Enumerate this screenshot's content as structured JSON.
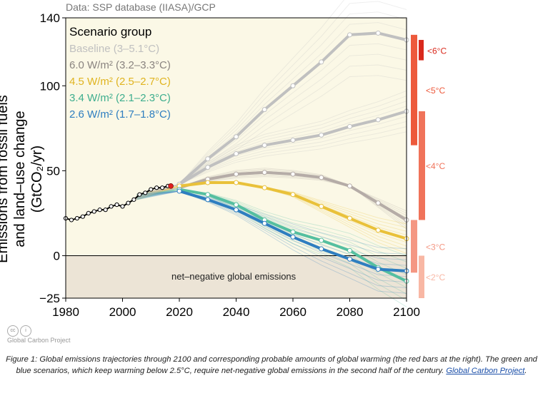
{
  "source_note": "Data: SSP database (IIASA)/GCP",
  "credit": "Global Carbon Project",
  "caption": {
    "text": "Figure 1: Global emissions trajectories through 2100 and corresponding probable amounts of global warming (the red bars at the right).  The green and blue scenarios, which keep warming below 2.5°C, require net-negative global emissions in the second half of the century.",
    "link": "Global Carbon Project"
  },
  "chart_data": {
    "type": "line",
    "ylabel": "Emissions from fossil fuels and land–use change (GtCO₂/yr)",
    "xlim": [
      1980,
      2100
    ],
    "ylim": [
      -25,
      140
    ],
    "x_ticks": [
      1980,
      2000,
      2020,
      2040,
      2060,
      2080,
      2100
    ],
    "y_ticks": [
      140,
      100,
      50,
      0,
      -25
    ],
    "legend_title": "Scenario group",
    "legend_placement": "top-left",
    "shaded_region": {
      "label": "net–negative global emissions",
      "from": -25,
      "to": 0,
      "color": "#ece4d6"
    },
    "historical": {
      "x": [
        1980,
        1982,
        1984,
        1986,
        1988,
        1990,
        1992,
        1994,
        1996,
        1998,
        2000,
        2002,
        2004,
        2006,
        2008,
        2010,
        2012,
        2014,
        2016
      ],
      "y": [
        22,
        21,
        22,
        23,
        25,
        26,
        27,
        27,
        29,
        30,
        29,
        31,
        33,
        36,
        37,
        39,
        40,
        40,
        41
      ],
      "color": "#000000",
      "endpoint": {
        "x": 2017,
        "y": 41,
        "color": "#e02020"
      }
    },
    "series": [
      {
        "name": "Baseline (3–5.1°C)",
        "color": "#c0c0c0",
        "x": [
          2020,
          2030,
          2040,
          2050,
          2060,
          2070,
          2080,
          2090,
          2100
        ],
        "y": [
          42,
          57,
          70,
          86,
          100,
          114,
          130,
          131,
          127
        ]
      },
      {
        "name": "6.0 W/m² (3.2–3.3°C)",
        "color": "#b5aca7",
        "x": [
          2020,
          2030,
          2040,
          2050,
          2060,
          2070,
          2080,
          2090,
          2100
        ],
        "y": [
          40,
          45,
          48,
          49,
          48,
          46,
          41,
          31,
          21
        ]
      },
      {
        "name": "4.5 W/m² (2.5–2.7°C)",
        "color": "#e9c13a",
        "x": [
          2020,
          2030,
          2040,
          2050,
          2060,
          2070,
          2080,
          2090,
          2100
        ],
        "y": [
          41,
          43,
          43,
          40,
          36,
          29,
          22,
          15,
          10
        ]
      },
      {
        "name": "3.4 W/m² (2.1–2.3°C)",
        "color": "#55bfa0",
        "x": [
          2020,
          2030,
          2040,
          2050,
          2060,
          2070,
          2080,
          2090,
          2100
        ],
        "y": [
          39,
          36,
          30,
          21,
          14,
          9,
          3,
          -7,
          -15
        ]
      },
      {
        "name": "2.6 W/m² (1.7–1.8°C)",
        "color": "#2e7ec0",
        "x": [
          2020,
          2030,
          2040,
          2050,
          2060,
          2070,
          2080,
          2090,
          2100
        ],
        "y": [
          38,
          33,
          27,
          19,
          11,
          4,
          -2,
          -8,
          -9
        ]
      }
    ],
    "extra_baseline_line": {
      "color": "#c0c0c0",
      "x": [
        2020,
        2030,
        2040,
        2050,
        2060,
        2070,
        2080,
        2090,
        2100
      ],
      "y": [
        42,
        52,
        60,
        65,
        68,
        71,
        76,
        80,
        85
      ]
    },
    "temperature_bars": [
      {
        "label": "<6°C",
        "color": "#d9291c",
        "from": 115,
        "to": 127
      },
      {
        "label": "<5°C",
        "color": "#ed5a3c",
        "from": 65,
        "to": 130
      },
      {
        "label": "<4°C",
        "color": "#f0735a",
        "from": 21,
        "to": 85
      },
      {
        "label": "<3°C",
        "color": "#f49783",
        "from": -10,
        "to": 21
      },
      {
        "label": "<2°C",
        "color": "#f8b7a4",
        "from": -25,
        "to": 0
      }
    ]
  }
}
